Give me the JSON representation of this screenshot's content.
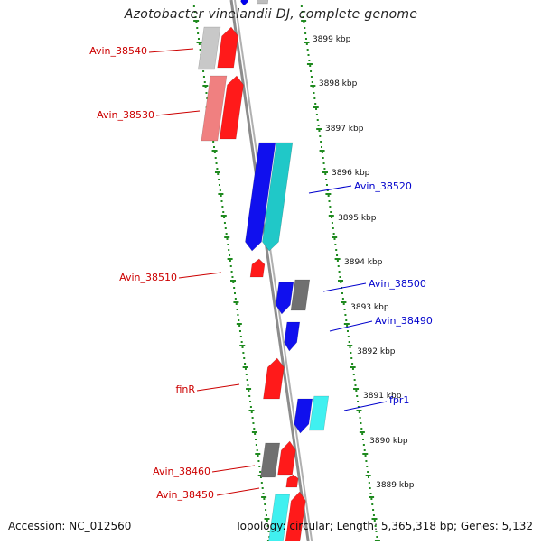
{
  "title": "Azotobacter vinelandii DJ, complete genome",
  "footer": {
    "accession": "Accession: NC_012560",
    "summary": "Topology: circular; Length: 5,365,318 bp; Genes: 5,132"
  },
  "colors": {
    "background": "#ffffff",
    "backbone": "#8c8c8c",
    "tick_marks": "#1f8a1f",
    "reverse_label": "#cc0000",
    "forward_label": "#0000cc"
  },
  "kbp_ticks": [
    "3899 kbp",
    "3898 kbp",
    "3897 kbp",
    "3896 kbp",
    "3895 kbp",
    "3894 kbp",
    "3893 kbp",
    "3892 kbp",
    "3891 kbp",
    "3890 kbp",
    "3889 kbp"
  ],
  "genes": [
    {
      "name": "Avin_38540",
      "strand": "reverse",
      "color": "#ff0000"
    },
    {
      "name": "Avin_38530",
      "strand": "reverse",
      "color": "#ff0000"
    },
    {
      "name": "Avin_38520",
      "strand": "forward",
      "color": "#0000ee"
    },
    {
      "name": "Avin_38510",
      "strand": "reverse",
      "color": "#ff0000"
    },
    {
      "name": "Avin_38500",
      "strand": "forward",
      "color": "#0000ee"
    },
    {
      "name": "Avin_38490",
      "strand": "forward",
      "color": "#0000ee"
    },
    {
      "name": "finR",
      "strand": "reverse",
      "color": "#ff0000"
    },
    {
      "name": "fpr1",
      "strand": "forward",
      "color": "#0000ee"
    },
    {
      "name": "Avin_38460",
      "strand": "reverse",
      "color": "#ff0000"
    },
    {
      "name": "Avin_38450",
      "strand": "reverse",
      "color": "#ff0000"
    }
  ]
}
